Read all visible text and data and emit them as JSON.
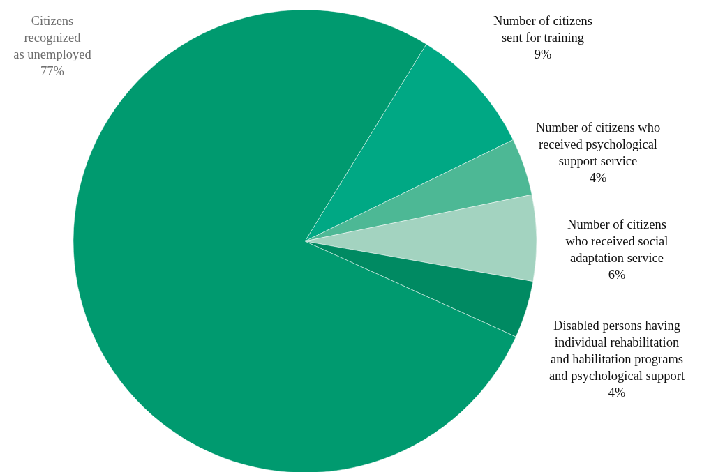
{
  "chart_data": {
    "type": "pie",
    "categories": [
      "Number of citizens\nsent for training",
      "Number of citizens who\nreceived psychological\nsupport service",
      "Number of citizens\nwho received social\nadaptation service",
      "Disabled persons having\nindividual rehabilitation\nand habilitation programs\nand psychological support",
      "Citizens\nrecognized\nas unemployed"
    ],
    "values": [
      9,
      4,
      6,
      4,
      77
    ],
    "colors": [
      "#00a884",
      "#4db895",
      "#a3d3c0",
      "#008a62",
      "#009a6f"
    ],
    "value_labels": [
      "9%",
      "4%",
      "6%",
      "4%",
      "77%"
    ]
  }
}
